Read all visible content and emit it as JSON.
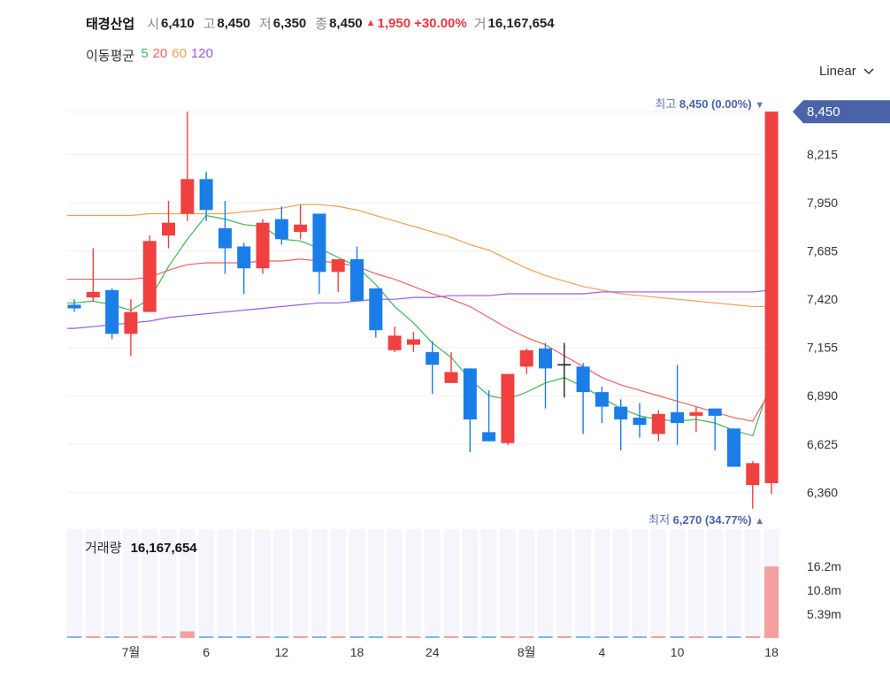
{
  "header": {
    "name": "태경산업",
    "open_label": "시",
    "open": "6,410",
    "high_label": "고",
    "high": "8,450",
    "low_label": "저",
    "low": "6,350",
    "close_label": "종",
    "close": "8,450",
    "change_arrow": "▲",
    "change": "1,950",
    "change_pct": "+30.00%",
    "volume_label": "거",
    "volume": "16,167,654"
  },
  "ma_legend": {
    "title": "이동평균",
    "items": [
      {
        "label": "5",
        "color": "#3cb853"
      },
      {
        "label": "20",
        "color": "#f06262"
      },
      {
        "label": "60",
        "color": "#f0a050"
      },
      {
        "label": "120",
        "color": "#9b59e6"
      }
    ]
  },
  "scale_selector": {
    "label": "Linear",
    "icon": "chevron-down-icon"
  },
  "volume_legend": {
    "title": "거래량",
    "value": "16,167,654"
  },
  "colors": {
    "up": "#f04040",
    "down": "#1a7de8",
    "flat": "#222222",
    "price_tag": "#4a63a9",
    "vol_up": "#f4a0a0",
    "vol_down": "#80b8f0",
    "hl_label": "#5b76b8"
  },
  "chart_data": {
    "type": "candlestick",
    "price_axis": {
      "ticks": [
        6360,
        6625,
        6890,
        7155,
        7420,
        7685,
        7950,
        8215,
        8450
      ],
      "tick_labels": [
        "6,360",
        "6,625",
        "6,890",
        "7,155",
        "7,420",
        "7,685",
        "7,950",
        "8,215",
        "8,450"
      ],
      "range": [
        6206,
        8490
      ]
    },
    "x_ticks": [
      {
        "index": 3,
        "label": "7월"
      },
      {
        "index": 7,
        "label": "6"
      },
      {
        "index": 11,
        "label": "12"
      },
      {
        "index": 15,
        "label": "18"
      },
      {
        "index": 19,
        "label": "24"
      },
      {
        "index": 24,
        "label": "8월"
      },
      {
        "index": 28,
        "label": "4"
      },
      {
        "index": 32,
        "label": "10"
      },
      {
        "index": 37,
        "label": "18"
      }
    ],
    "candles": [
      {
        "o": 7390,
        "h": 7420,
        "l": 7350,
        "c": 7370
      },
      {
        "o": 7430,
        "h": 7700,
        "l": 7410,
        "c": 7460
      },
      {
        "o": 7470,
        "h": 7480,
        "l": 7200,
        "c": 7230
      },
      {
        "o": 7230,
        "h": 7420,
        "l": 7110,
        "c": 7350
      },
      {
        "o": 7350,
        "h": 7770,
        "l": 7350,
        "c": 7740
      },
      {
        "o": 7770,
        "h": 7960,
        "l": 7700,
        "c": 7840
      },
      {
        "o": 7890,
        "h": 8450,
        "l": 7850,
        "c": 8080
      },
      {
        "o": 8080,
        "h": 8120,
        "l": 7850,
        "c": 7910
      },
      {
        "o": 7810,
        "h": 7960,
        "l": 7560,
        "c": 7700
      },
      {
        "o": 7710,
        "h": 7730,
        "l": 7450,
        "c": 7590
      },
      {
        "o": 7590,
        "h": 7860,
        "l": 7560,
        "c": 7840
      },
      {
        "o": 7860,
        "h": 7930,
        "l": 7720,
        "c": 7750
      },
      {
        "o": 7790,
        "h": 7940,
        "l": 7750,
        "c": 7830
      },
      {
        "o": 7890,
        "h": 7890,
        "l": 7450,
        "c": 7570
      },
      {
        "o": 7570,
        "h": 7620,
        "l": 7460,
        "c": 7640
      },
      {
        "o": 7640,
        "h": 7710,
        "l": 7410,
        "c": 7410
      },
      {
        "o": 7480,
        "h": 7480,
        "l": 7210,
        "c": 7250
      },
      {
        "o": 7140,
        "h": 7270,
        "l": 7130,
        "c": 7220
      },
      {
        "o": 7170,
        "h": 7240,
        "l": 7130,
        "c": 7200
      },
      {
        "o": 7130,
        "h": 7190,
        "l": 6900,
        "c": 7060
      },
      {
        "o": 6960,
        "h": 7130,
        "l": 6960,
        "c": 7020
      },
      {
        "o": 7040,
        "h": 7040,
        "l": 6580,
        "c": 6760
      },
      {
        "o": 6690,
        "h": 6920,
        "l": 6640,
        "c": 6640
      },
      {
        "o": 6630,
        "h": 7000,
        "l": 6620,
        "c": 7010
      },
      {
        "o": 7050,
        "h": 7150,
        "l": 7010,
        "c": 7140
      },
      {
        "o": 7150,
        "h": 7180,
        "l": 6820,
        "c": 7040
      },
      {
        "o": 7060,
        "h": 7180,
        "l": 6880,
        "c": 7060
      },
      {
        "o": 7050,
        "h": 7070,
        "l": 6680,
        "c": 6910
      },
      {
        "o": 6910,
        "h": 6940,
        "l": 6740,
        "c": 6830
      },
      {
        "o": 6830,
        "h": 6870,
        "l": 6590,
        "c": 6760
      },
      {
        "o": 6770,
        "h": 6850,
        "l": 6660,
        "c": 6730
      },
      {
        "o": 6680,
        "h": 6810,
        "l": 6640,
        "c": 6790
      },
      {
        "o": 6800,
        "h": 7060,
        "l": 6620,
        "c": 6740
      },
      {
        "o": 6780,
        "h": 6830,
        "l": 6690,
        "c": 6800
      },
      {
        "o": 6820,
        "h": 6820,
        "l": 6590,
        "c": 6780
      },
      {
        "o": 6710,
        "h": 6710,
        "l": 6500,
        "c": 6500
      },
      {
        "o": 6400,
        "h": 6530,
        "l": 6270,
        "c": 6520
      },
      {
        "o": 6410,
        "h": 8450,
        "l": 6350,
        "c": 8450
      }
    ],
    "volume": {
      "axis_labels": [
        "16.2m",
        "10.8m",
        "5.39m"
      ],
      "axis_values": [
        16200000,
        10800000,
        5390000
      ],
      "max": 16200000,
      "values": [
        200000,
        160000,
        120000,
        110000,
        500000,
        380000,
        1500000,
        240000,
        130000,
        100000,
        120000,
        90000,
        100000,
        250000,
        100000,
        90000,
        90000,
        80000,
        80000,
        80000,
        90000,
        260000,
        90000,
        110000,
        90000,
        80000,
        80000,
        80000,
        80000,
        70000,
        80000,
        70000,
        90000,
        80000,
        80000,
        80000,
        80000,
        16167654
      ]
    },
    "ma": {
      "ma5": [
        7400,
        7410,
        7390,
        7360,
        7420,
        7600,
        7750,
        7880,
        7860,
        7830,
        7820,
        7750,
        7740,
        7700,
        7650,
        7600,
        7500,
        7380,
        7290,
        7180,
        7100,
        6980,
        6890,
        6870,
        6910,
        6960,
        6990,
        6940,
        6880,
        6820,
        6780,
        6760,
        6750,
        6760,
        6740,
        6700,
        6670,
        6980
      ],
      "ma20": [
        7530,
        7530,
        7530,
        7530,
        7540,
        7580,
        7610,
        7620,
        7620,
        7620,
        7630,
        7630,
        7640,
        7630,
        7620,
        7600,
        7560,
        7530,
        7490,
        7450,
        7420,
        7380,
        7320,
        7260,
        7210,
        7170,
        7110,
        7050,
        6990,
        6950,
        6920,
        6890,
        6860,
        6830,
        6800,
        6770,
        6750,
        6930
      ],
      "ma60": [
        7880,
        7880,
        7880,
        7880,
        7890,
        7890,
        7890,
        7890,
        7890,
        7900,
        7910,
        7920,
        7940,
        7940,
        7930,
        7910,
        7880,
        7850,
        7820,
        7790,
        7760,
        7720,
        7690,
        7640,
        7590,
        7550,
        7520,
        7490,
        7470,
        7450,
        7440,
        7430,
        7420,
        7410,
        7400,
        7390,
        7380,
        7380
      ],
      "ma120": [
        7260,
        7270,
        7280,
        7290,
        7300,
        7320,
        7330,
        7340,
        7350,
        7360,
        7370,
        7380,
        7390,
        7400,
        7400,
        7410,
        7420,
        7420,
        7430,
        7430,
        7440,
        7440,
        7440,
        7450,
        7450,
        7450,
        7450,
        7450,
        7460,
        7460,
        7460,
        7460,
        7460,
        7460,
        7460,
        7460,
        7460,
        7470
      ]
    },
    "annotations": {
      "high": {
        "prefix": "최고",
        "value": "8,450",
        "pct": "(0.00%)",
        "arrow": "▼"
      },
      "low": {
        "prefix": "최저",
        "value": "6,270",
        "pct": "(34.77%)",
        "arrow": "▲"
      },
      "last_price_tag": "8,450"
    }
  }
}
